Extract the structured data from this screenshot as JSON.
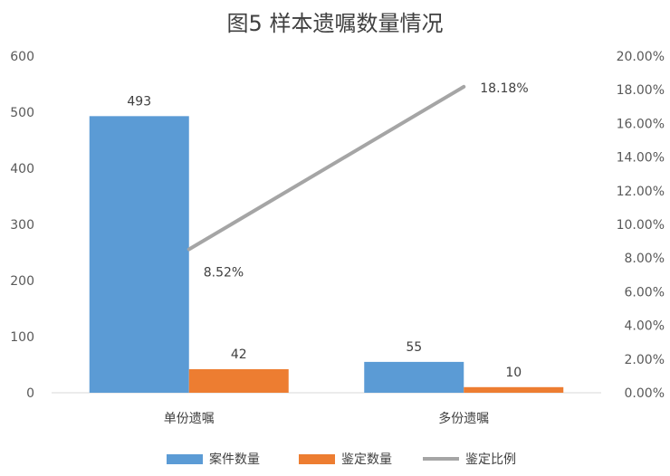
{
  "chart_data": {
    "type": "bar",
    "title": "图5 样本遗嘱数量情况",
    "categories": [
      "单份遗嘱",
      "多份遗嘱"
    ],
    "series": [
      {
        "name": "案件数量",
        "type": "bar",
        "axis": "left",
        "color": "#5B9BD5",
        "values": [
          493,
          55
        ],
        "labels": [
          "493",
          "55"
        ]
      },
      {
        "name": "鉴定数量",
        "type": "bar",
        "axis": "left",
        "color": "#ED7D31",
        "values": [
          42,
          10
        ],
        "labels": [
          "42",
          "10"
        ]
      },
      {
        "name": "鉴定比例",
        "type": "line",
        "axis": "right",
        "color": "#A5A5A5",
        "values": [
          8.52,
          18.18
        ],
        "labels": [
          "8.52%",
          "18.18%"
        ]
      }
    ],
    "ylim_left": [
      0,
      600
    ],
    "yticks_left": [
      "0",
      "100",
      "200",
      "300",
      "400",
      "500",
      "600"
    ],
    "ylim_right": [
      0,
      20
    ],
    "yticks_right": [
      "0.00%",
      "2.00%",
      "4.00%",
      "6.00%",
      "8.00%",
      "10.00%",
      "12.00%",
      "14.00%",
      "16.00%",
      "18.00%",
      "20.00%"
    ],
    "grid": false,
    "legend": "bottom"
  }
}
